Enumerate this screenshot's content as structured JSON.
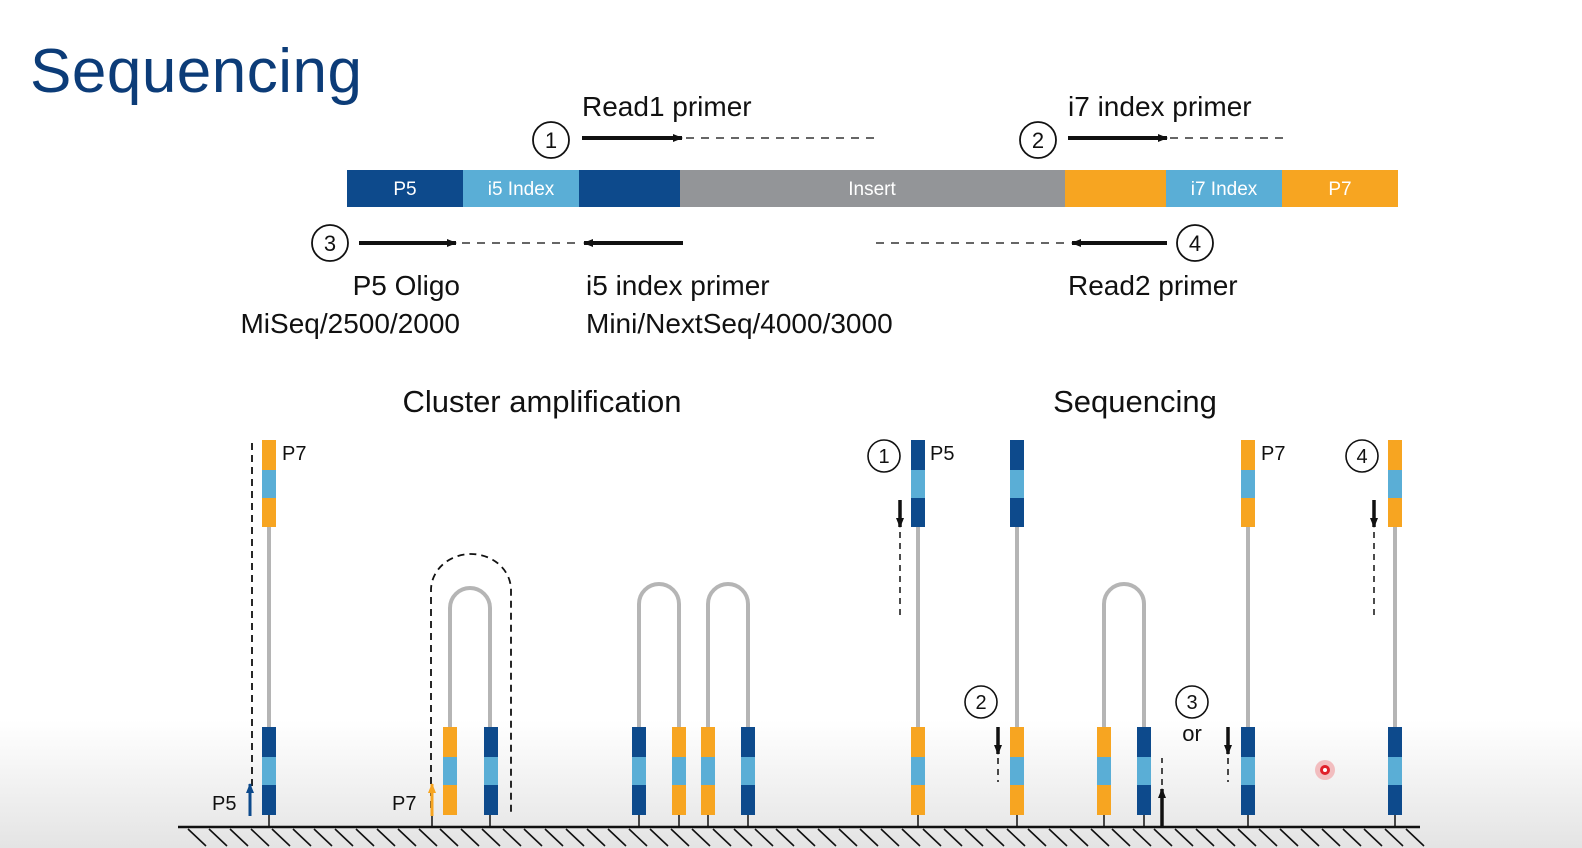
{
  "title": "Sequencing",
  "colors": {
    "p5_dark_blue": "#0d4a8c",
    "index_light_blue": "#5aaed6",
    "insert_gray": "#939598",
    "p7_orange": "#f7a521",
    "strand_gray": "#b5b5b5",
    "title_blue": "#0c3c78",
    "laser_red": "#e0202a"
  },
  "library": {
    "segments": [
      "P5",
      "i5 Index",
      "",
      "Insert",
      "",
      "i7 Index",
      "P7"
    ]
  },
  "primers": {
    "read1": {
      "num": "1",
      "label": "Read1 primer"
    },
    "i7": {
      "num": "2",
      "label": "i7 index primer"
    },
    "p5_oligo": {
      "num": "3",
      "label": "P5 Oligo",
      "note": "MiSeq/2500/2000"
    },
    "i5": {
      "label": "i5 index primer",
      "note": "Mini/NextSeq/4000/3000"
    },
    "read2": {
      "num": "4",
      "label": "Read2 primer"
    }
  },
  "sections": {
    "cluster": "Cluster amplification",
    "sequencing": "Sequencing"
  },
  "diagram_labels": {
    "p7": "P7",
    "p5": "P5",
    "num1": "1",
    "num2": "2",
    "num3": "3",
    "num4": "4",
    "or": "or"
  }
}
